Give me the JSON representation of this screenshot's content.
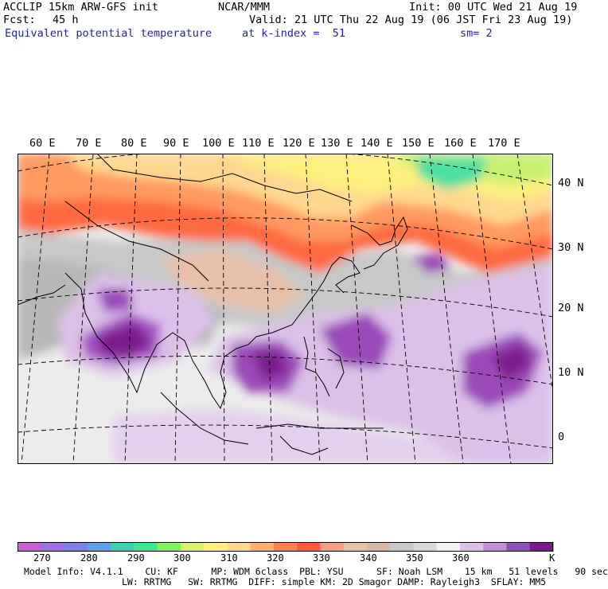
{
  "header": {
    "model": "ACCLIP 15km ARW-GFS init",
    "org": "NCAR/MMM",
    "init": "Init: 00 UTC Wed 21 Aug 19",
    "fcst_label": "Fcst:",
    "fcst_value": "45 h",
    "valid": "Valid: 21 UTC Thu 22 Aug 19 (06 JST Fri 23 Aug 19)",
    "field": "Equivalent potential temperature",
    "level": "at k-index =  51",
    "smoothing": "sm= 2"
  },
  "map": {
    "lon_labels": [
      "60 E",
      "70 E",
      "80 E",
      "90 E",
      "100 E",
      "110 E",
      "120 E",
      "130 E",
      "140 E",
      "150 E",
      "160 E",
      "170 E"
    ],
    "lat_labels": [
      "40 N",
      "30 N",
      "20 N",
      "10 N",
      "0"
    ]
  },
  "colorbar": {
    "unit": "K",
    "labels": [
      "270",
      "280",
      "290",
      "300",
      "310",
      "320",
      "330",
      "340",
      "350",
      "360"
    ],
    "colors": [
      "#c860d0",
      "#a070e0",
      "#7f7fe8",
      "#5f9fe8",
      "#3fcfb0",
      "#3fe890",
      "#7ff060",
      "#d8f070",
      "#fff080",
      "#ffd890",
      "#ffb070",
      "#ff8050",
      "#ff5a3a",
      "#f59f85",
      "#e8c0a8",
      "#d8b8a8",
      "#c8c8c8",
      "#d8d8d8",
      "#f2f2f2",
      "#dcc0e8",
      "#c090d8",
      "#9050b8",
      "#7a1a8a"
    ]
  },
  "model_info": {
    "line1": "Model Info: V4.1.1    CU: KF      MP: WDM 6class  PBL: YSU      SF: Noah LSM    15 km   51 levels   90 sec",
    "line2": "LW: RRTMG   SW: RRTMG  DIFF: simple KM: 2D Smagor DAMP: Rayleigh3  SFLAY: MM5"
  }
}
